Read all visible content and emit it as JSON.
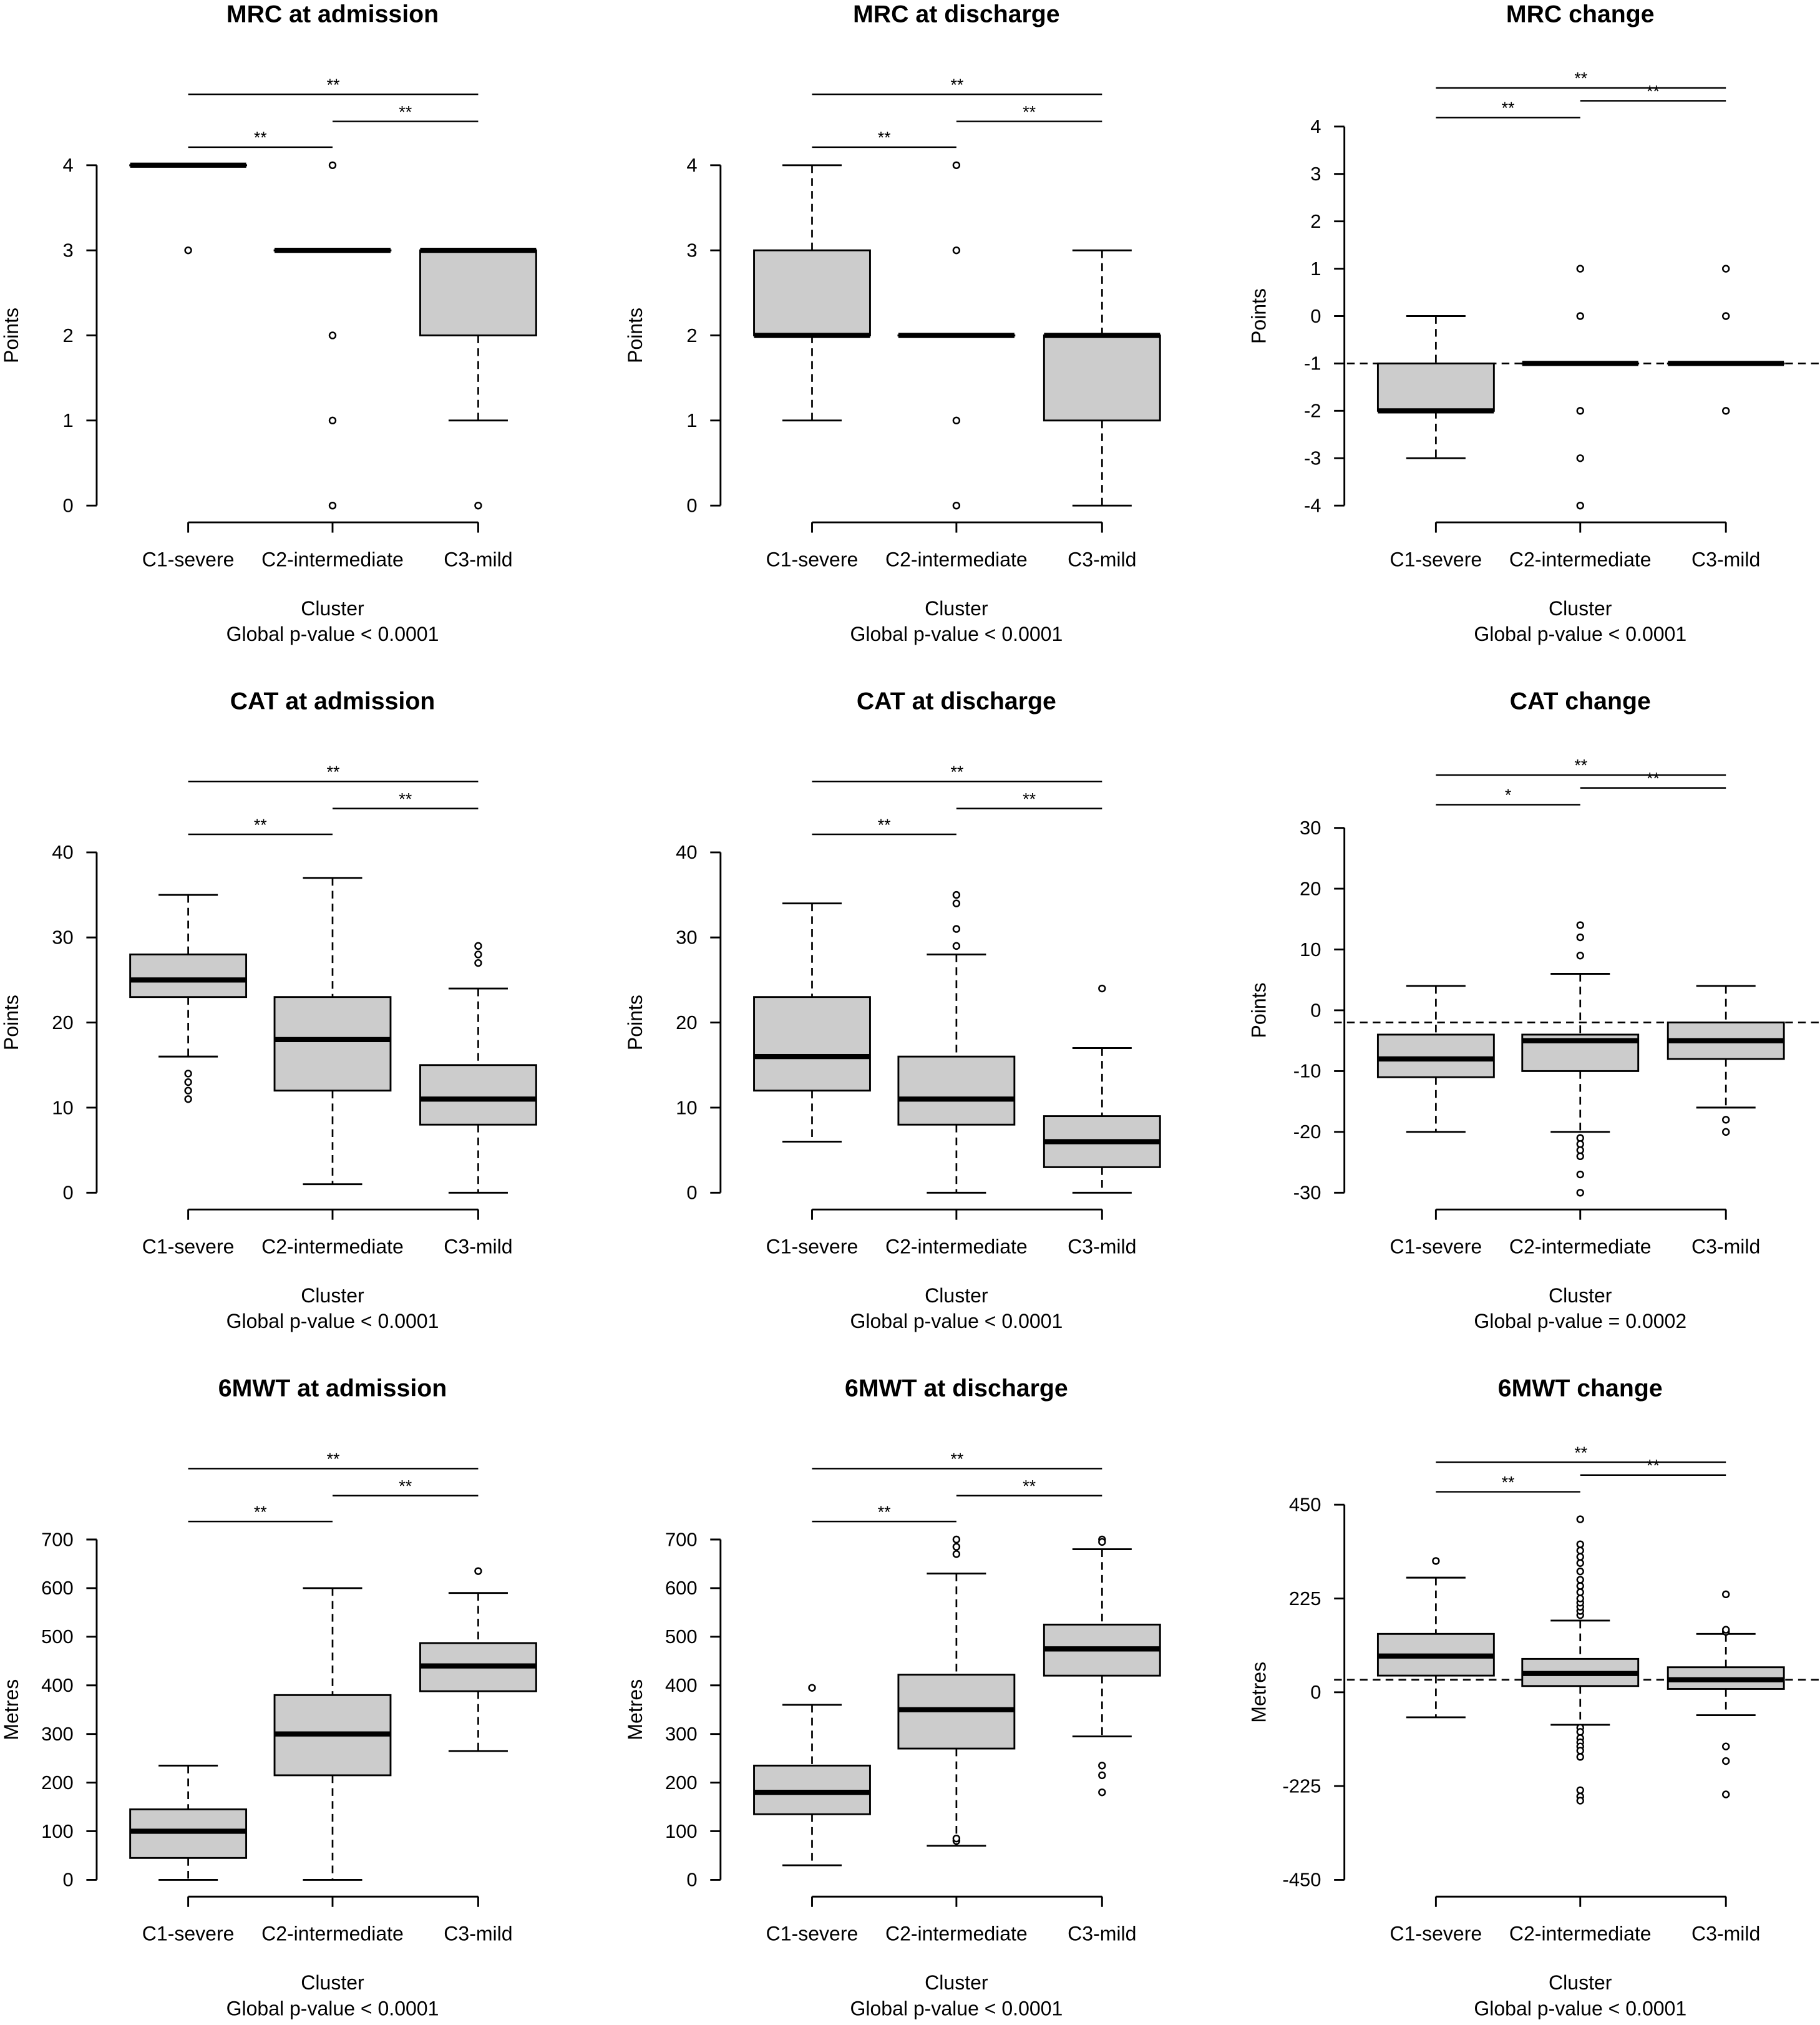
{
  "colors": {
    "box_fill": "#cccccc",
    "line": "#000000"
  },
  "chart_data": [
    {
      "type": "box",
      "title": "MRC at admission",
      "ylabel": "Points",
      "xlabel": "Cluster",
      "pvalue_text": "Global p-value  < 0.0001",
      "categories": [
        "C1-severe",
        "C2-intermediate",
        "C3-mild"
      ],
      "ylim": [
        0,
        4
      ],
      "yticks": [
        0,
        1,
        2,
        3,
        4
      ],
      "reference_line": null,
      "comparisons": [
        {
          "pair": [
            0,
            2
          ],
          "label": "**"
        },
        {
          "pair": [
            1,
            2
          ],
          "label": "**"
        },
        {
          "pair": [
            0,
            1
          ],
          "label": "**"
        }
      ],
      "boxes": [
        {
          "whislo": 4,
          "q1": 4,
          "med": 4,
          "q3": 4,
          "whishi": 4,
          "outliers": [
            3
          ]
        },
        {
          "whislo": 3,
          "q1": 3,
          "med": 3,
          "q3": 3,
          "whishi": 3,
          "outliers": [
            4,
            2,
            1,
            0
          ]
        },
        {
          "whislo": 1,
          "q1": 2,
          "med": 3,
          "q3": 3,
          "whishi": 3,
          "outliers": [
            0
          ]
        }
      ]
    },
    {
      "type": "box",
      "title": "MRC at discharge",
      "ylabel": "Points",
      "xlabel": "Cluster",
      "pvalue_text": "Global p-value  < 0.0001",
      "categories": [
        "C1-severe",
        "C2-intermediate",
        "C3-mild"
      ],
      "ylim": [
        0,
        4
      ],
      "yticks": [
        0,
        1,
        2,
        3,
        4
      ],
      "reference_line": null,
      "comparisons": [
        {
          "pair": [
            0,
            2
          ],
          "label": "**"
        },
        {
          "pair": [
            1,
            2
          ],
          "label": "**"
        },
        {
          "pair": [
            0,
            1
          ],
          "label": "**"
        }
      ],
      "boxes": [
        {
          "whislo": 1,
          "q1": 2,
          "med": 2,
          "q3": 3,
          "whishi": 4,
          "outliers": []
        },
        {
          "whislo": 2,
          "q1": 2,
          "med": 2,
          "q3": 2,
          "whishi": 2,
          "outliers": [
            4,
            3,
            1,
            0
          ]
        },
        {
          "whislo": 0,
          "q1": 1,
          "med": 2,
          "q3": 2,
          "whishi": 3,
          "outliers": []
        }
      ]
    },
    {
      "type": "box",
      "title": "MRC change",
      "ylabel": "Points",
      "xlabel": "Cluster",
      "pvalue_text": "Global p-value  < 0.0001",
      "categories": [
        "C1-severe",
        "C2-intermediate",
        "C3-mild"
      ],
      "ylim": [
        -4,
        4
      ],
      "yticks": [
        -4,
        -3,
        -2,
        -1,
        0,
        1,
        2,
        3,
        4
      ],
      "reference_line": -1,
      "comparisons": [
        {
          "pair": [
            0,
            2
          ],
          "label": "**"
        },
        {
          "pair": [
            1,
            2
          ],
          "label": "**"
        },
        {
          "pair": [
            0,
            1
          ],
          "label": "**"
        }
      ],
      "boxes": [
        {
          "whislo": -3,
          "q1": -2,
          "med": -2,
          "q3": -1,
          "whishi": 0,
          "outliers": []
        },
        {
          "whislo": -1,
          "q1": -1,
          "med": -1,
          "q3": -1,
          "whishi": -1,
          "outliers": [
            1,
            0,
            -2,
            -3,
            -4
          ]
        },
        {
          "whislo": -1,
          "q1": -1,
          "med": -1,
          "q3": -1,
          "whishi": -1,
          "outliers": [
            1,
            0,
            -2
          ]
        }
      ]
    },
    {
      "type": "box",
      "title": "CAT at admission",
      "ylabel": "Points",
      "xlabel": "Cluster",
      "pvalue_text": "Global p-value  < 0.0001",
      "categories": [
        "C1-severe",
        "C2-intermediate",
        "C3-mild"
      ],
      "ylim": [
        0,
        40
      ],
      "yticks": [
        0,
        10,
        20,
        30,
        40
      ],
      "reference_line": null,
      "comparisons": [
        {
          "pair": [
            0,
            2
          ],
          "label": "**"
        },
        {
          "pair": [
            1,
            2
          ],
          "label": "**"
        },
        {
          "pair": [
            0,
            1
          ],
          "label": "**"
        }
      ],
      "boxes": [
        {
          "whislo": 16,
          "q1": 23,
          "med": 25,
          "q3": 28,
          "whishi": 35,
          "outliers": [
            14,
            13,
            12,
            11
          ]
        },
        {
          "whislo": 1,
          "q1": 12,
          "med": 18,
          "q3": 23,
          "whishi": 37,
          "outliers": []
        },
        {
          "whislo": 0,
          "q1": 8,
          "med": 11,
          "q3": 15,
          "whishi": 24,
          "outliers": [
            27,
            28,
            29
          ]
        }
      ]
    },
    {
      "type": "box",
      "title": "CAT at discharge",
      "ylabel": "Points",
      "xlabel": "Cluster",
      "pvalue_text": "Global p-value  < 0.0001",
      "categories": [
        "C1-severe",
        "C2-intermediate",
        "C3-mild"
      ],
      "ylim": [
        0,
        40
      ],
      "yticks": [
        0,
        10,
        20,
        30,
        40
      ],
      "reference_line": null,
      "comparisons": [
        {
          "pair": [
            0,
            2
          ],
          "label": "**"
        },
        {
          "pair": [
            1,
            2
          ],
          "label": "**"
        },
        {
          "pair": [
            0,
            1
          ],
          "label": "**"
        }
      ],
      "boxes": [
        {
          "whislo": 6,
          "q1": 12,
          "med": 16,
          "q3": 23,
          "whishi": 34,
          "outliers": []
        },
        {
          "whislo": 0,
          "q1": 8,
          "med": 11,
          "q3": 16,
          "whishi": 28,
          "outliers": [
            29,
            31,
            34,
            35
          ]
        },
        {
          "whislo": 0,
          "q1": 3,
          "med": 6,
          "q3": 9,
          "whishi": 17,
          "outliers": [
            24
          ]
        }
      ]
    },
    {
      "type": "box",
      "title": "CAT change",
      "ylabel": "Points",
      "xlabel": "Cluster",
      "pvalue_text": "Global p-value  = 0.0002",
      "categories": [
        "C1-severe",
        "C2-intermediate",
        "C3-mild"
      ],
      "ylim": [
        -30,
        30
      ],
      "yticks": [
        -30,
        -20,
        -10,
        0,
        10,
        20,
        30
      ],
      "reference_line": -2,
      "comparisons": [
        {
          "pair": [
            0,
            2
          ],
          "label": "**"
        },
        {
          "pair": [
            1,
            2
          ],
          "label": "**"
        },
        {
          "pair": [
            0,
            1
          ],
          "label": "*"
        }
      ],
      "boxes": [
        {
          "whislo": -20,
          "q1": -11,
          "med": -8,
          "q3": -4,
          "whishi": 4,
          "outliers": []
        },
        {
          "whislo": -20,
          "q1": -10,
          "med": -5,
          "q3": -4,
          "whishi": 6,
          "outliers": [
            9,
            12,
            14,
            -21,
            -22,
            -23,
            -24,
            -27,
            -30
          ]
        },
        {
          "whislo": -16,
          "q1": -8,
          "med": -5,
          "q3": -2,
          "whishi": 4,
          "outliers": [
            -18,
            -20
          ]
        }
      ]
    },
    {
      "type": "box",
      "title": "6MWT at admission",
      "ylabel": "Metres",
      "xlabel": "Cluster",
      "pvalue_text": "Global p-value  < 0.0001",
      "categories": [
        "C1-severe",
        "C2-intermediate",
        "C3-mild"
      ],
      "ylim": [
        0,
        700
      ],
      "yticks": [
        0,
        100,
        200,
        300,
        400,
        500,
        600,
        700
      ],
      "reference_line": null,
      "comparisons": [
        {
          "pair": [
            0,
            2
          ],
          "label": "**"
        },
        {
          "pair": [
            1,
            2
          ],
          "label": "**"
        },
        {
          "pair": [
            0,
            1
          ],
          "label": "**"
        }
      ],
      "boxes": [
        {
          "whislo": 0,
          "q1": 45,
          "med": 100,
          "q3": 145,
          "whishi": 235,
          "outliers": []
        },
        {
          "whislo": 0,
          "q1": 215,
          "med": 300,
          "q3": 380,
          "whishi": 600,
          "outliers": []
        },
        {
          "whislo": 265,
          "q1": 388,
          "med": 440,
          "q3": 487,
          "whishi": 590,
          "outliers": [
            635
          ]
        }
      ]
    },
    {
      "type": "box",
      "title": "6MWT at discharge",
      "ylabel": "Metres",
      "xlabel": "Cluster",
      "pvalue_text": "Global p-value  < 0.0001",
      "categories": [
        "C1-severe",
        "C2-intermediate",
        "C3-mild"
      ],
      "ylim": [
        0,
        700
      ],
      "yticks": [
        0,
        100,
        200,
        300,
        400,
        500,
        600,
        700
      ],
      "reference_line": null,
      "comparisons": [
        {
          "pair": [
            0,
            2
          ],
          "label": "**"
        },
        {
          "pair": [
            1,
            2
          ],
          "label": "**"
        },
        {
          "pair": [
            0,
            1
          ],
          "label": "**"
        }
      ],
      "boxes": [
        {
          "whislo": 30,
          "q1": 135,
          "med": 180,
          "q3": 235,
          "whishi": 360,
          "outliers": [
            395
          ]
        },
        {
          "whislo": 70,
          "q1": 270,
          "med": 350,
          "q3": 422,
          "whishi": 630,
          "outliers": [
            670,
            685,
            700,
            80,
            85
          ]
        },
        {
          "whislo": 295,
          "q1": 420,
          "med": 475,
          "q3": 525,
          "whishi": 680,
          "outliers": [
            700,
            695,
            235,
            215,
            180
          ]
        }
      ]
    },
    {
      "type": "box",
      "title": "6MWT change",
      "ylabel": "Metres",
      "xlabel": "Cluster",
      "pvalue_text": "Global p-value  < 0.0001",
      "categories": [
        "C1-severe",
        "C2-intermediate",
        "C3-mild"
      ],
      "ylim": [
        -450,
        450
      ],
      "yticks": [
        -450,
        -225,
        0,
        225,
        450
      ],
      "reference_line": 30,
      "comparisons": [
        {
          "pair": [
            0,
            2
          ],
          "label": "**"
        },
        {
          "pair": [
            1,
            2
          ],
          "label": "**"
        },
        {
          "pair": [
            0,
            1
          ],
          "label": "**"
        }
      ],
      "boxes": [
        {
          "whislo": -60,
          "q1": 40,
          "med": 87,
          "q3": 140,
          "whishi": 275,
          "outliers": [
            315
          ]
        },
        {
          "whislo": -78,
          "q1": 15,
          "med": 45,
          "q3": 80,
          "whishi": 172,
          "outliers": [
            185,
            195,
            205,
            215,
            225,
            240,
            255,
            270,
            290,
            310,
            325,
            340,
            355,
            415,
            -85,
            -95,
            -110,
            -120,
            -130,
            -140,
            -155,
            -235,
            -250,
            -260
          ]
        },
        {
          "whislo": -55,
          "q1": 8,
          "med": 30,
          "q3": 60,
          "whishi": 140,
          "outliers": [
            145,
            150,
            235,
            -130,
            -165,
            -245
          ]
        }
      ]
    }
  ]
}
